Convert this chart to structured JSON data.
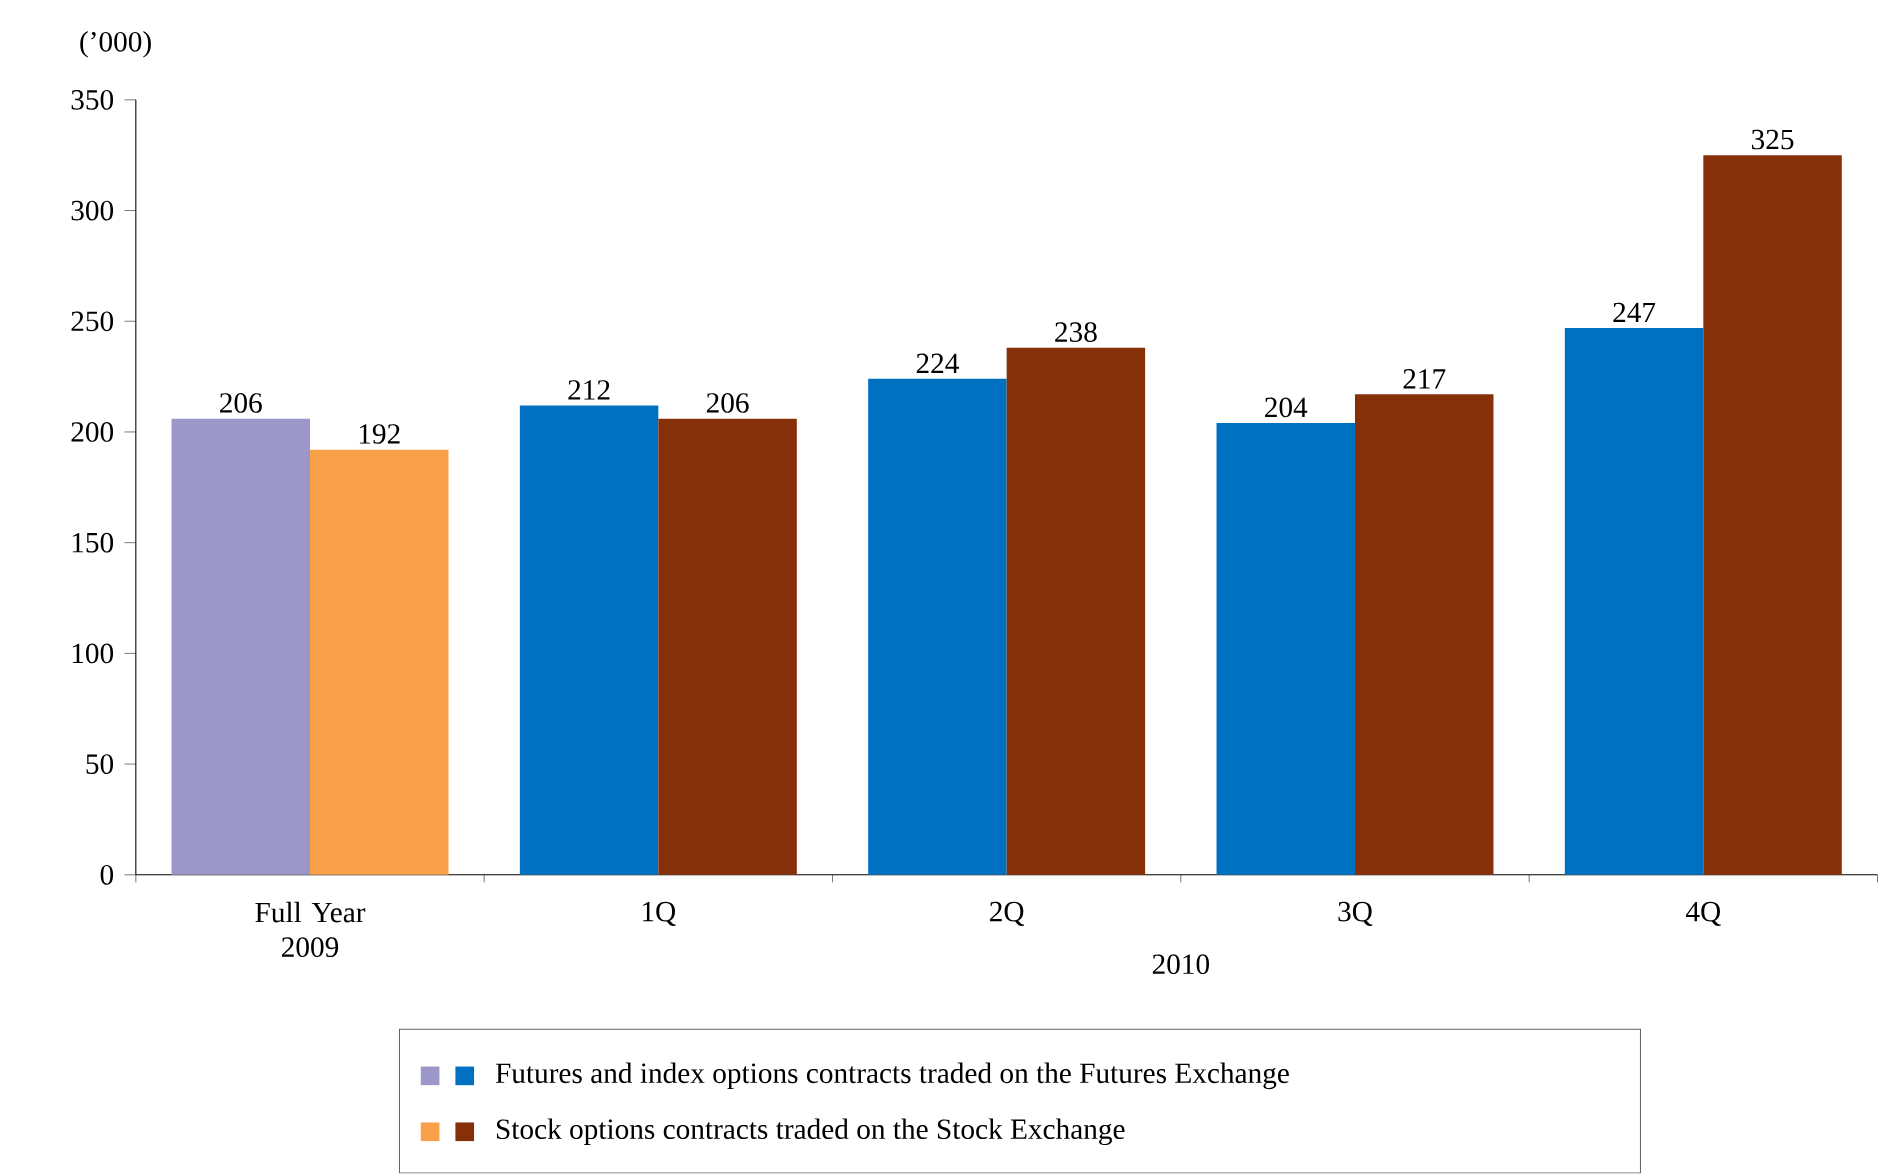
{
  "chart_data": {
    "type": "bar",
    "ylabel": "(’000)",
    "categories": [
      "Full Year 2009",
      "1Q",
      "2Q",
      "3Q",
      "4Q"
    ],
    "series": [
      {
        "name": "Futures and index options contracts traded on the Futures Exchange",
        "colors": [
          "#9b97c9",
          "#0070c0",
          "#0070c0",
          "#0070c0",
          "#0070c0"
        ],
        "values": [
          206,
          212,
          224,
          204,
          247
        ]
      },
      {
        "name": "Stock options contracts traded on the Stock Exchange",
        "colors": [
          "#f9a04a",
          "#86300a",
          "#86300a",
          "#86300a",
          "#86300a"
        ],
        "values": [
          192,
          206,
          238,
          217,
          325
        ]
      }
    ],
    "annotations": [
      "2010"
    ],
    "ylim": [
      0,
      350
    ],
    "yticks": [
      0,
      50,
      100,
      150,
      200,
      250,
      300,
      350
    ],
    "data_labels": true,
    "legend": "bottom"
  }
}
